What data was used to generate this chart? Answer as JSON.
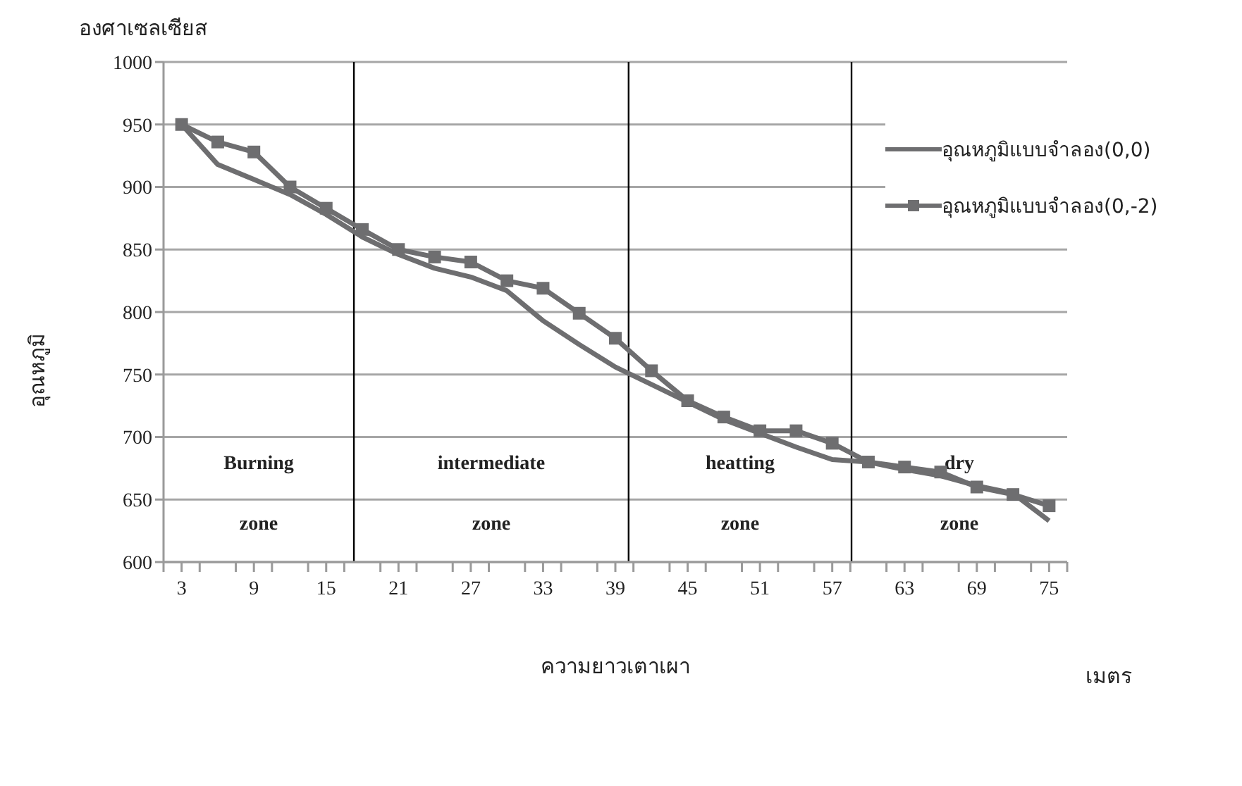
{
  "chart_data": {
    "type": "line",
    "xlabel": "ความยาวเตาเผา",
    "ylabel": "อุณหภูมิ",
    "annotations": [
      "องศาเซลเซียส",
      "เมตร",
      "Burning zone",
      "intermediate zone",
      "heatting zone",
      "dry zone"
    ],
    "x": [
      3,
      6,
      9,
      12,
      15,
      18,
      21,
      24,
      27,
      30,
      33,
      36,
      39,
      42,
      45,
      48,
      51,
      54,
      57,
      60,
      63,
      66,
      69,
      72,
      75
    ],
    "series": [
      {
        "name": "อุณหภูมิแบบจำลอง(0,0)",
        "color": "#6e6e70",
        "marker": "none",
        "values": [
          950,
          918,
          906,
          894,
          878,
          860,
          846,
          835,
          828,
          817,
          793,
          774,
          756,
          742,
          728,
          714,
          703,
          692,
          682,
          680,
          674,
          669,
          661,
          655,
          633
        ]
      },
      {
        "name": "อุณหภูมิแบบจำลอง(0,-2)",
        "color": "#6e6e70",
        "marker": "square",
        "values": [
          950,
          936,
          928,
          900,
          883,
          866,
          850,
          844,
          840,
          825,
          819,
          799,
          779,
          753,
          729,
          716,
          705,
          705,
          695,
          680,
          676,
          672,
          660,
          654,
          645
        ]
      }
    ],
    "xlim": [
      1.5,
      76.5
    ],
    "xticks": [
      {
        "value": 1.5,
        "label": null
      },
      3,
      {
        "value": 4.5,
        "label": null
      },
      {
        "value": 7.5,
        "label": null
      },
      9,
      {
        "value": 10.5,
        "label": null
      },
      {
        "value": 13.5,
        "label": null
      },
      15,
      {
        "value": 16.5,
        "label": null
      },
      {
        "value": 19.5,
        "label": null
      },
      21,
      {
        "value": 22.5,
        "label": null
      },
      {
        "value": 25.5,
        "label": null
      },
      27,
      {
        "value": 28.5,
        "label": null
      },
      {
        "value": 31.5,
        "label": null
      },
      33,
      {
        "value": 34.5,
        "label": null
      },
      {
        "value": 37.5,
        "label": null
      },
      39,
      {
        "value": 40.5,
        "label": null
      },
      {
        "value": 43.5,
        "label": null
      },
      45,
      {
        "value": 46.5,
        "label": null
      },
      {
        "value": 49.5,
        "label": null
      },
      51,
      {
        "value": 52.5,
        "label": null
      },
      {
        "value": 55.5,
        "label": null
      },
      57,
      {
        "value": 58.5,
        "label": null
      },
      {
        "value": 61.5,
        "label": null
      },
      63,
      {
        "value": 64.5,
        "label": null
      },
      {
        "value": 67.5,
        "label": null
      },
      69,
      {
        "value": 70.5,
        "label": null
      },
      {
        "value": 73.5,
        "label": null
      },
      75,
      {
        "value": 76.5,
        "label": null
      }
    ],
    "ylim": [
      600,
      1000
    ],
    "yticks": [
      600,
      650,
      700,
      750,
      800,
      850,
      900,
      950,
      1000
    ],
    "grid": "y",
    "legend": "right",
    "line_style": "solid",
    "ref_lines": [
      {
        "axis": "x",
        "value": 17.3,
        "color": "#000000"
      },
      {
        "axis": "x",
        "value": 40.1,
        "color": "#000000"
      },
      {
        "axis": "x",
        "value": 58.6,
        "color": "#000000"
      }
    ]
  }
}
